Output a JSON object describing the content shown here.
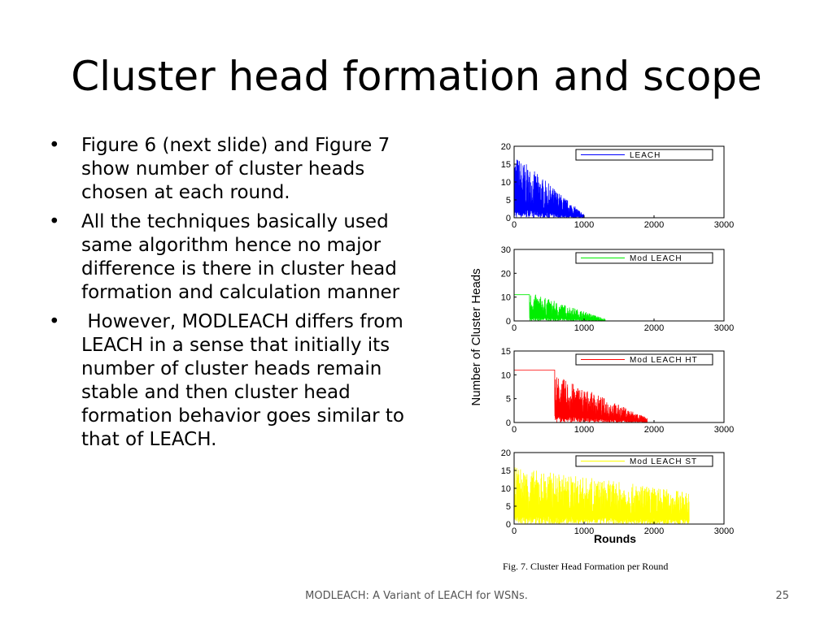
{
  "slide": {
    "title": "Cluster head formation and scope",
    "bullets": [
      "Figure 6 (next slide) and Figure 7 show number of cluster heads chosen at each round.",
      "All the techniques basically used same algorithm hence no major difference is there in cluster head formation and calculation manner",
      " However, MODLEACH differs from LEACH in a sense that initially its number of cluster heads remain stable and then cluster head formation behavior goes similar to that of LEACH."
    ],
    "bullet_glyph": "•",
    "footer": "MODLEACH: A Variant of LEACH for WSNs.",
    "page_number": "25"
  },
  "chart_data": {
    "type": "line",
    "caption": "Fig. 7.   Cluster Head Formation per Round",
    "ylabel": "Number of Cluster Heads",
    "xlabel": "Rounds",
    "x_ticks": [
      0,
      1000,
      2000,
      3000
    ],
    "xlim": [
      0,
      3000
    ],
    "panels": [
      {
        "legend": "LEACH",
        "color": "#0000ff",
        "ylim": [
          0,
          20
        ],
        "y_ticks": [
          0,
          5,
          10,
          15,
          20
        ],
        "stable_until": 0,
        "stable_value": 0,
        "active_start": 0,
        "active_end": 1000,
        "peak_start": 18,
        "peak_end": 1,
        "tail_end": 3000,
        "tail_value": 0
      },
      {
        "legend": "Mod LEACH",
        "color": "#00ee00",
        "ylim": [
          0,
          30
        ],
        "y_ticks": [
          0,
          10,
          20,
          30
        ],
        "stable_until": 220,
        "stable_value": 11,
        "active_start": 220,
        "active_end": 1300,
        "peak_start": 12,
        "peak_end": 1,
        "tail_end": 2500,
        "tail_value": 0
      },
      {
        "legend": "Mod LEACH HT",
        "color": "#ff0000",
        "ylim": [
          0,
          15
        ],
        "y_ticks": [
          0,
          5,
          10,
          15
        ],
        "stable_until": 580,
        "stable_value": 11,
        "active_start": 580,
        "active_end": 1900,
        "peak_start": 10,
        "peak_end": 1,
        "tail_end": 2600,
        "tail_value": 0
      },
      {
        "legend": "Mod LEACH ST",
        "color": "#ffff00",
        "ylim": [
          0,
          20
        ],
        "y_ticks": [
          0,
          5,
          10,
          15,
          20
        ],
        "stable_until": 0,
        "stable_value": 0,
        "active_start": 0,
        "active_end": 2500,
        "peak_start": 16,
        "peak_end": 9,
        "tail_end": 2500,
        "tail_value": 0
      }
    ]
  }
}
